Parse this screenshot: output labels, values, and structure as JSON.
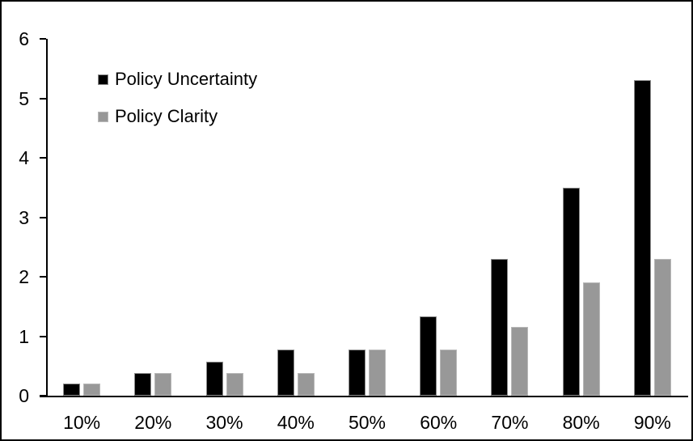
{
  "chart_data": {
    "type": "bar",
    "title": "",
    "xlabel": "",
    "ylabel": "",
    "categories": [
      "10%",
      "20%",
      "30%",
      "40%",
      "50%",
      "60%",
      "70%",
      "80%",
      "90%"
    ],
    "series": [
      {
        "name": "Policy Uncertainty",
        "color": "#000000",
        "border_color": "#8c8c8c",
        "values": [
          0.2,
          0.38,
          0.57,
          0.77,
          0.77,
          1.33,
          2.3,
          3.5,
          5.3
        ]
      },
      {
        "name": "Policy Clarity",
        "color": "#989898",
        "border_color": "#b8b8b8",
        "values": [
          0.2,
          0.38,
          0.38,
          0.38,
          0.77,
          0.77,
          1.15,
          1.9,
          2.3
        ]
      }
    ],
    "ylim": [
      0,
      6
    ],
    "yticks": [
      0,
      1,
      2,
      3,
      4,
      5,
      6
    ],
    "grid": false,
    "legend_position": "inside-top-left",
    "frame_color": "#000000",
    "background_color": "#ffffff"
  }
}
